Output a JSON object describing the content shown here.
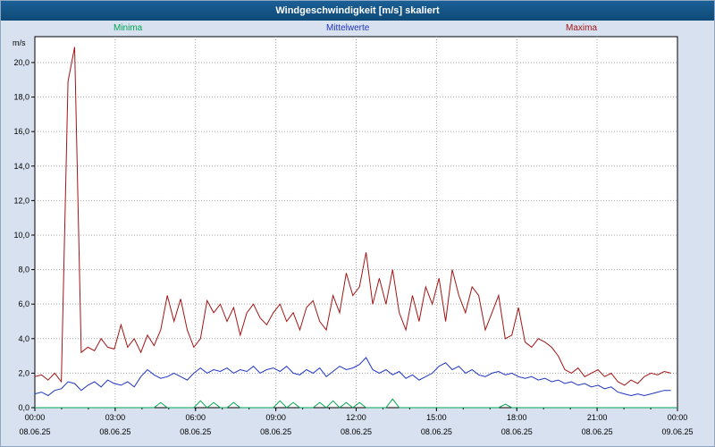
{
  "window": {
    "title": "Windgeschwindigkeit [m/s] skaliert"
  },
  "colors": {
    "titlebar": "#125381",
    "background": "#d8e1f0",
    "plot_background": "#ffffff",
    "grid": "#a6a6a6",
    "minima": "#00a651",
    "mittelwerte": "#1f35c0",
    "maxima": "#a31515"
  },
  "chart_data": {
    "type": "line",
    "title": "Windgeschwindigkeit [m/s] skaliert",
    "xlabel": "",
    "ylabel": "m/s",
    "ylim": [
      0,
      21.5
    ],
    "grid": "dotted",
    "legend_position": "top",
    "y_ticks": [
      {
        "value": 0,
        "label": "0,0"
      },
      {
        "value": 2,
        "label": "2,0"
      },
      {
        "value": 4,
        "label": "4,0"
      },
      {
        "value": 6,
        "label": "6,0"
      },
      {
        "value": 8,
        "label": "8,0"
      },
      {
        "value": 10,
        "label": "10,0"
      },
      {
        "value": 12,
        "label": "12,0"
      },
      {
        "value": 14,
        "label": "14,0"
      },
      {
        "value": 16,
        "label": "16,0"
      },
      {
        "value": 18,
        "label": "18,0"
      },
      {
        "value": 20,
        "label": "20,0"
      }
    ],
    "x_ticks": [
      {
        "time": "00:00",
        "date": "08.06.25"
      },
      {
        "time": "03:00",
        "date": "08.06.25"
      },
      {
        "time": "06:00",
        "date": "08.06.25"
      },
      {
        "time": "09:00",
        "date": "08.06.25"
      },
      {
        "time": "12:00",
        "date": "08.06.25"
      },
      {
        "time": "15:00",
        "date": "08.06.25"
      },
      {
        "time": "18:00",
        "date": "08.06.25"
      },
      {
        "time": "21:00",
        "date": "08.06.25"
      },
      {
        "time": "00:00",
        "date": "09.06.25"
      }
    ],
    "x_interval_minutes": 15,
    "series": [
      {
        "name": "Minima",
        "color": "#00a651",
        "values": [
          0,
          0,
          0,
          0,
          0,
          0,
          0,
          0,
          0,
          0,
          0,
          0,
          0,
          0,
          0,
          0,
          0,
          0,
          0,
          0.3,
          0,
          0,
          0,
          0,
          0,
          0.4,
          0,
          0.3,
          0,
          0,
          0.3,
          0,
          0,
          0,
          0,
          0,
          0,
          0.4,
          0,
          0.3,
          0,
          0,
          0,
          0.3,
          0,
          0.4,
          0,
          0.3,
          0,
          0.3,
          0,
          0,
          0,
          0,
          0.5,
          0,
          0,
          0,
          0,
          0,
          0,
          0,
          0,
          0,
          0,
          0,
          0,
          0,
          0,
          0,
          0,
          0.2,
          0,
          0,
          0,
          0,
          0,
          0,
          0,
          0,
          0,
          0,
          0,
          0,
          0,
          0,
          0,
          0,
          0,
          0,
          0,
          0,
          0,
          0,
          0,
          0,
          0,
          0
        ]
      },
      {
        "name": "Mittelwerte",
        "color": "#1f35c0",
        "values": [
          0.8,
          0.9,
          0.7,
          1.0,
          1.1,
          1.5,
          1.4,
          1.0,
          1.3,
          1.5,
          1.2,
          1.6,
          1.4,
          1.3,
          1.5,
          1.2,
          1.8,
          2.2,
          1.9,
          1.7,
          1.8,
          2.0,
          1.8,
          1.6,
          2.0,
          2.3,
          2.0,
          2.2,
          2.1,
          2.3,
          2.0,
          2.2,
          2.1,
          2.4,
          2.0,
          2.2,
          2.3,
          2.1,
          2.4,
          2.0,
          1.9,
          2.2,
          2.0,
          2.3,
          1.8,
          2.1,
          2.4,
          2.2,
          2.3,
          2.5,
          2.9,
          2.2,
          2.0,
          2.2,
          1.9,
          2.1,
          1.7,
          1.9,
          1.6,
          1.8,
          2.0,
          2.4,
          2.6,
          2.2,
          2.4,
          2.0,
          2.2,
          1.9,
          1.8,
          2.0,
          2.1,
          1.9,
          2.0,
          1.8,
          1.7,
          1.8,
          1.6,
          1.7,
          1.5,
          1.6,
          1.4,
          1.5,
          1.3,
          1.4,
          1.2,
          1.3,
          1.1,
          1.2,
          0.9,
          0.8,
          0.7,
          0.8,
          0.7,
          0.8,
          0.9,
          1.0,
          1.0
        ]
      },
      {
        "name": "Maxima",
        "color": "#a31515",
        "values": [
          1.8,
          1.9,
          1.6,
          2.0,
          1.5,
          18.9,
          20.9,
          3.2,
          3.5,
          3.3,
          4.0,
          3.5,
          3.4,
          4.8,
          3.5,
          4.0,
          3.2,
          4.2,
          3.6,
          4.5,
          6.5,
          5.0,
          6.3,
          4.5,
          3.5,
          4.0,
          6.2,
          5.5,
          6.0,
          5.0,
          5.8,
          4.2,
          5.5,
          6.0,
          5.2,
          4.8,
          5.5,
          6.0,
          5.0,
          5.5,
          4.5,
          5.8,
          6.2,
          5.0,
          4.5,
          6.5,
          5.5,
          7.8,
          6.5,
          7.0,
          9.0,
          6.0,
          7.5,
          6.0,
          8.0,
          5.5,
          4.5,
          6.5,
          5.0,
          7.0,
          6.0,
          7.5,
          5.0,
          8.0,
          6.5,
          5.5,
          7.0,
          6.5,
          4.5,
          5.5,
          6.5,
          4.0,
          4.2,
          5.8,
          3.8,
          3.5,
          4.0,
          3.8,
          3.5,
          3.0,
          2.2,
          2.0,
          2.3,
          1.8,
          2.0,
          2.2,
          1.8,
          2.0,
          1.5,
          1.3,
          1.6,
          1.4,
          1.8,
          2.0,
          1.9,
          2.1,
          2.0
        ]
      }
    ]
  }
}
